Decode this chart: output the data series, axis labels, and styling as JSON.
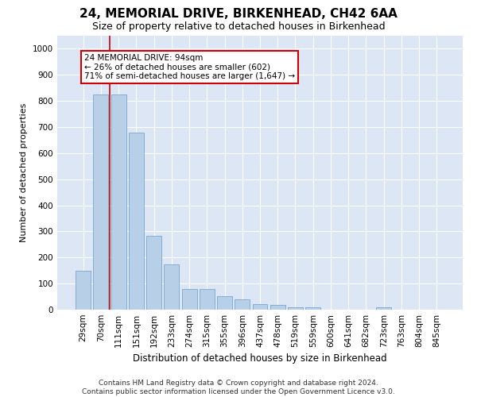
{
  "title": "24, MEMORIAL DRIVE, BIRKENHEAD, CH42 6AA",
  "subtitle": "Size of property relative to detached houses in Birkenhead",
  "xlabel": "Distribution of detached houses by size in Birkenhead",
  "ylabel": "Number of detached properties",
  "categories": [
    "29sqm",
    "70sqm",
    "111sqm",
    "151sqm",
    "192sqm",
    "233sqm",
    "274sqm",
    "315sqm",
    "355sqm",
    "396sqm",
    "437sqm",
    "478sqm",
    "519sqm",
    "559sqm",
    "600sqm",
    "641sqm",
    "682sqm",
    "723sqm",
    "763sqm",
    "804sqm",
    "845sqm"
  ],
  "values": [
    150,
    825,
    825,
    680,
    283,
    175,
    80,
    78,
    53,
    40,
    20,
    18,
    8,
    8,
    0,
    0,
    0,
    10,
    0,
    0,
    0
  ],
  "bar_color": "#b8cfe8",
  "bar_edge_color": "#6a9cc9",
  "vline_color": "#cc0000",
  "annotation_text": "24 MEMORIAL DRIVE: 94sqm\n← 26% of detached houses are smaller (602)\n71% of semi-detached houses are larger (1,647) →",
  "annotation_border_color": "#cc0000",
  "ylim": [
    0,
    1050
  ],
  "yticks": [
    0,
    100,
    200,
    300,
    400,
    500,
    600,
    700,
    800,
    900,
    1000
  ],
  "plot_bg_color": "#dce6f5",
  "grid_color": "#ffffff",
  "footer": "Contains HM Land Registry data © Crown copyright and database right 2024.\nContains public sector information licensed under the Open Government Licence v3.0.",
  "title_fontsize": 11,
  "subtitle_fontsize": 9,
  "xlabel_fontsize": 8.5,
  "ylabel_fontsize": 8,
  "tick_fontsize": 7.5,
  "footer_fontsize": 6.5,
  "annotation_fontsize": 7.5
}
